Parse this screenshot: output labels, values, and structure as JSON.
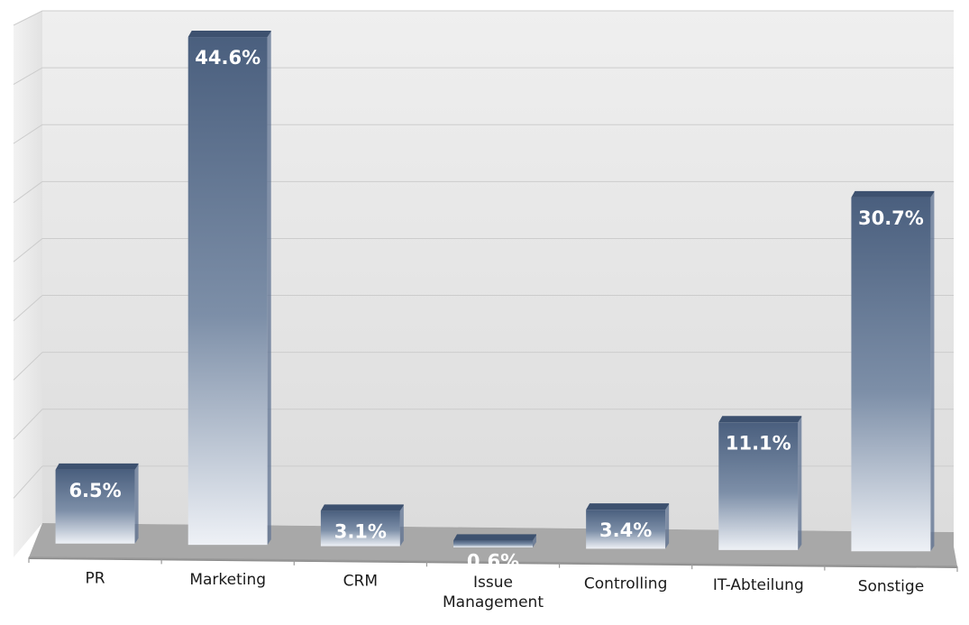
{
  "chart_data": {
    "type": "bar",
    "title": "",
    "xlabel": "",
    "ylabel": "",
    "categories": [
      "PR",
      "Marketing",
      "CRM",
      "Issue Management",
      "Controlling",
      "IT-Abteilung",
      "Sonstige"
    ],
    "category_lines": [
      [
        "PR"
      ],
      [
        "Marketing"
      ],
      [
        "CRM"
      ],
      [
        "Issue",
        "Management"
      ],
      [
        "Controlling"
      ],
      [
        "IT-Abteilung"
      ],
      [
        "Sonstige"
      ]
    ],
    "values": [
      6.5,
      44.6,
      3.1,
      0.6,
      3.4,
      11.1,
      30.7
    ],
    "value_labels": [
      "6.5%",
      "44.6%",
      "3.1%",
      "0.6%",
      "3.4%",
      "11.1%",
      "30.7%"
    ],
    "ylim": [
      0,
      45
    ],
    "grid": true,
    "legend": "none",
    "colors": {
      "bar_top": "#4a5f7e",
      "bar_mid": "#7d8fa8",
      "bar_bottom": "#eef1f6",
      "wall": "#e6e6e6",
      "floor": "#a8a8a8",
      "grid": "#cccccc"
    }
  }
}
